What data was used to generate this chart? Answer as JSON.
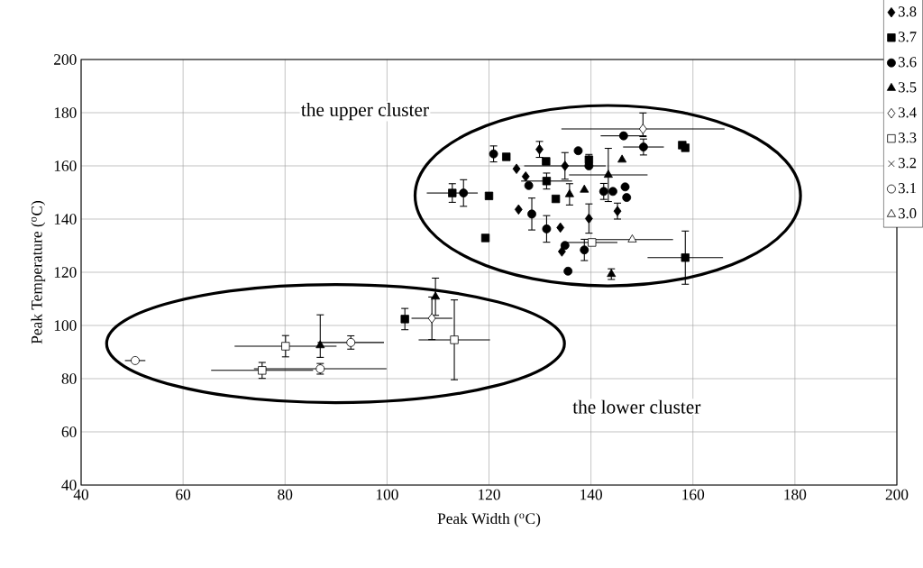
{
  "chart_data": {
    "type": "scatter",
    "xlabel": "Peak Width ($^{o}$C)",
    "ylabel": "Peak Temperature ($^{o}$C)",
    "xlim": [
      40,
      200
    ],
    "xticks": [
      40,
      60,
      80,
      100,
      120,
      140,
      160,
      180,
      200
    ],
    "ylim": [
      40,
      200
    ],
    "yticks": [
      40,
      60,
      80,
      100,
      120,
      140,
      160,
      180,
      200
    ],
    "grid": true,
    "legend": "top right",
    "annotations": [
      "the upper cluster",
      "the lower cluster"
    ],
    "series": [
      {
        "name": "3.8",
        "marker": "diamond",
        "color": "#000000",
        "x": [
          129.9,
          134.9,
          125.4,
          127.2,
          145.2,
          125.8,
          139.6,
          134,
          134.3
        ],
        "values": [
          166.2,
          160,
          158.9,
          156,
          143,
          143.6,
          140.2,
          136.8,
          127.8
        ],
        "errors": [
          3,
          5,
          null,
          null,
          3,
          null,
          5.5,
          null,
          null
        ],
        "xerrors": [
          null,
          8,
          null,
          null,
          null,
          null,
          null,
          null,
          null
        ]
      },
      {
        "name": "3.7",
        "marker": "square",
        "color": "#000000",
        "x": [
          123.4,
          131.2,
          139.6,
          131.3,
          112.8,
          120,
          133.1,
          119.3,
          158.5,
          157.9,
          158.5,
          103.5
        ],
        "values": [
          163.4,
          161.7,
          162.3,
          154.3,
          149.8,
          148.7,
          147.6,
          132.9,
          125.5,
          167.8,
          166.8,
          102.4
        ],
        "errors": [
          null,
          null,
          2,
          3,
          3.5,
          null,
          null,
          null,
          10,
          null,
          null,
          4
        ],
        "xerrors": [
          null,
          null,
          null,
          5,
          5,
          null,
          null,
          null,
          7.4,
          null,
          null,
          null
        ]
      },
      {
        "name": "3.6",
        "marker": "circle",
        "color": "#000000",
        "x": [
          146.4,
          150.3,
          120.9,
          137.5,
          139.6,
          127.8,
          115,
          142.5,
          144.3,
          146.7,
          147,
          128.4,
          131.3,
          134.9,
          138.7,
          135.5
        ],
        "values": [
          171.3,
          167.1,
          164.5,
          165.7,
          160,
          152.6,
          149.8,
          150.4,
          150.4,
          152.1,
          148.1,
          141.9,
          136.3,
          130.1,
          128.4,
          120.4
        ],
        "errors": [
          null,
          3,
          3,
          null,
          null,
          null,
          5,
          3,
          null,
          null,
          null,
          6,
          5,
          null,
          4,
          null
        ],
        "xerrors": [
          4.5,
          4,
          null,
          null,
          null,
          null,
          null,
          null,
          null,
          null,
          null,
          null,
          null,
          null,
          null,
          null
        ]
      },
      {
        "name": "3.5",
        "marker": "triangle",
        "color": "#000000",
        "x": [
          146.1,
          143.4,
          135.8,
          138.7,
          144,
          86.9,
          109.5
        ],
        "values": [
          162.3,
          156.6,
          149.3,
          151,
          119.3,
          92.5,
          110.8
        ],
        "errors": [
          null,
          10,
          4,
          null,
          2,
          [
            88,
            104
          ],
          7
        ],
        "xerrors": [
          null,
          7.7,
          null,
          null,
          null,
          null,
          null
        ]
      },
      {
        "name": "3.4",
        "marker": "diamond",
        "color": "#ffffff",
        "x": [
          150.2,
          108.8
        ],
        "values": [
          173.9,
          102.7
        ],
        "errors": [
          [
            171,
            179.9
          ],
          8
        ],
        "xerrors": [
          16,
          4
        ]
      },
      {
        "name": "3.3",
        "marker": "square",
        "color": "#ffffff",
        "x": [
          140.2,
          80.1,
          75.5,
          113.2
        ],
        "values": [
          131.2,
          92.2,
          83.1,
          94.6
        ],
        "errors": [
          null,
          4,
          3,
          15
        ],
        "xerrors": [
          5,
          10,
          10,
          7
        ]
      },
      {
        "name": "3.2",
        "marker": "cross",
        "color": "#000000"
      },
      {
        "name": "3.1",
        "marker": "circle",
        "color": "#ffffff",
        "x": [
          50.6,
          86.9,
          92.9
        ],
        "values": [
          86.8,
          83.7,
          93.6
        ],
        "errors": [
          null,
          2,
          2.5
        ],
        "xerrors": [
          2,
          13,
          6.5
        ]
      },
      {
        "name": "3.0",
        "marker": "triangle",
        "color": "#ffffff",
        "x": [
          148.1
        ],
        "values": [
          132.3
        ],
        "xerrors": [
          8
        ]
      }
    ]
  }
}
